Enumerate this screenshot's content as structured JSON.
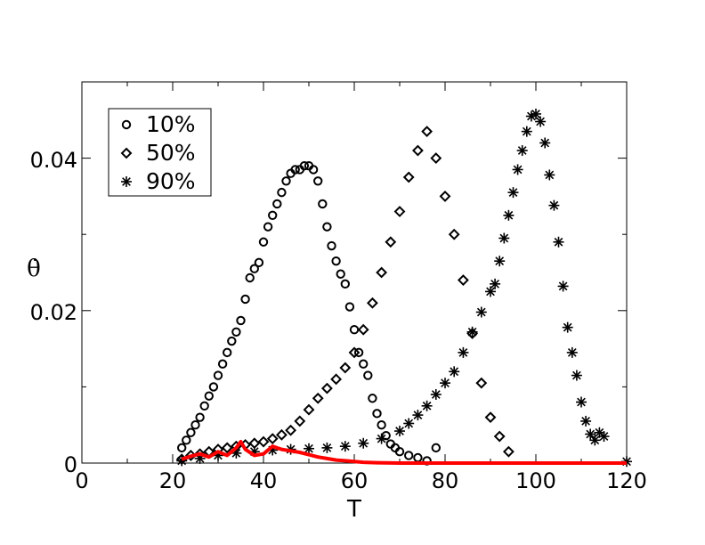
{
  "chart_data": {
    "type": "scatter",
    "xlabel": "T",
    "ylabel": "θ̇",
    "xlim": [
      0,
      120
    ],
    "ylim": [
      0,
      0.05
    ],
    "x_ticks": [
      "0",
      "20",
      "40",
      "60",
      "80",
      "100",
      "120"
    ],
    "y_ticks": [
      "0",
      "0.02",
      "0.04"
    ],
    "legend_position": "top-left",
    "grid": false,
    "series": [
      {
        "name": "10%",
        "marker": "circle",
        "x": [
          22,
          23,
          24,
          25,
          26,
          27,
          28,
          29,
          30,
          31,
          32,
          33,
          34,
          35,
          36,
          37,
          38,
          39,
          40,
          41,
          42,
          43,
          44,
          45,
          46,
          47,
          48,
          49,
          50,
          51,
          52,
          53,
          54,
          55,
          56,
          57,
          58,
          59,
          60,
          61,
          62,
          63,
          64,
          65,
          66,
          67,
          68,
          69,
          70,
          72,
          74,
          76,
          78
        ],
        "values": [
          0.002,
          0.003,
          0.004,
          0.005,
          0.006,
          0.0075,
          0.0088,
          0.01,
          0.0115,
          0.013,
          0.0145,
          0.016,
          0.0172,
          0.0187,
          0.0215,
          0.0243,
          0.0255,
          0.0263,
          0.029,
          0.031,
          0.0325,
          0.034,
          0.0355,
          0.037,
          0.038,
          0.0385,
          0.0385,
          0.039,
          0.039,
          0.0385,
          0.037,
          0.034,
          0.031,
          0.0285,
          0.0265,
          0.0248,
          0.0235,
          0.0205,
          0.0175,
          0.0145,
          0.013,
          0.0115,
          0.0085,
          0.0065,
          0.005,
          0.0036,
          0.0025,
          0.002,
          0.0015,
          0.001,
          0.0007,
          0.0003,
          0.002
        ]
      },
      {
        "name": "50%",
        "marker": "diamond",
        "x": [
          22,
          24,
          26,
          28,
          30,
          32,
          34,
          36,
          38,
          40,
          42,
          44,
          46,
          48,
          50,
          52,
          54,
          56,
          58,
          60,
          62,
          64,
          66,
          68,
          70,
          72,
          74,
          76,
          78,
          80,
          82,
          84,
          86,
          88,
          90,
          92,
          94
        ],
        "values": [
          0.0005,
          0.001,
          0.0012,
          0.0015,
          0.0018,
          0.002,
          0.0022,
          0.0024,
          0.0026,
          0.0028,
          0.0032,
          0.0037,
          0.0043,
          0.0055,
          0.007,
          0.0085,
          0.0098,
          0.011,
          0.0125,
          0.0145,
          0.0175,
          0.021,
          0.025,
          0.029,
          0.033,
          0.0375,
          0.041,
          0.0435,
          0.04,
          0.035,
          0.03,
          0.024,
          0.017,
          0.0105,
          0.006,
          0.0035,
          0.0015
        ]
      },
      {
        "name": "90%",
        "marker": "asterisk",
        "x": [
          22,
          26,
          30,
          34,
          38,
          42,
          46,
          50,
          54,
          58,
          62,
          66,
          70,
          72,
          74,
          76,
          78,
          80,
          82,
          84,
          86,
          88,
          90,
          91,
          92,
          93,
          94,
          95,
          96,
          97,
          98,
          99,
          100,
          101,
          102,
          103,
          104,
          105,
          106,
          107,
          108,
          109,
          110,
          111,
          112,
          113,
          114,
          115,
          120
        ],
        "values": [
          0.0003,
          0.0006,
          0.001,
          0.0013,
          0.0015,
          0.0017,
          0.0018,
          0.0019,
          0.002,
          0.0022,
          0.0026,
          0.0032,
          0.0042,
          0.0052,
          0.0063,
          0.0075,
          0.009,
          0.0105,
          0.012,
          0.0145,
          0.0172,
          0.0198,
          0.0225,
          0.0235,
          0.0265,
          0.0295,
          0.0325,
          0.0355,
          0.0385,
          0.041,
          0.0435,
          0.0455,
          0.0458,
          0.0448,
          0.042,
          0.0378,
          0.0338,
          0.029,
          0.0232,
          0.0178,
          0.0145,
          0.0115,
          0.008,
          0.0055,
          0.0038,
          0.003,
          0.004,
          0.0035,
          0.0002
        ]
      },
      {
        "marker": "line",
        "color": "#ff0000",
        "x": [
          22,
          24,
          26,
          28,
          30,
          32,
          34,
          35,
          36,
          38,
          40,
          42,
          44,
          46,
          48,
          50,
          52,
          54,
          56,
          58,
          60,
          62,
          65,
          70,
          80,
          90,
          100,
          110,
          120
        ],
        "values": [
          0.0005,
          0.0009,
          0.0012,
          0.0008,
          0.0015,
          0.001,
          0.002,
          0.0028,
          0.0018,
          0.001,
          0.0012,
          0.0022,
          0.0018,
          0.0016,
          0.0014,
          0.0011,
          0.0008,
          0.0006,
          0.0004,
          0.0003,
          0.0002,
          0.0001,
          5e-05,
          0.0,
          0.0,
          0.0,
          0.0,
          0.0,
          0.0
        ]
      }
    ]
  }
}
